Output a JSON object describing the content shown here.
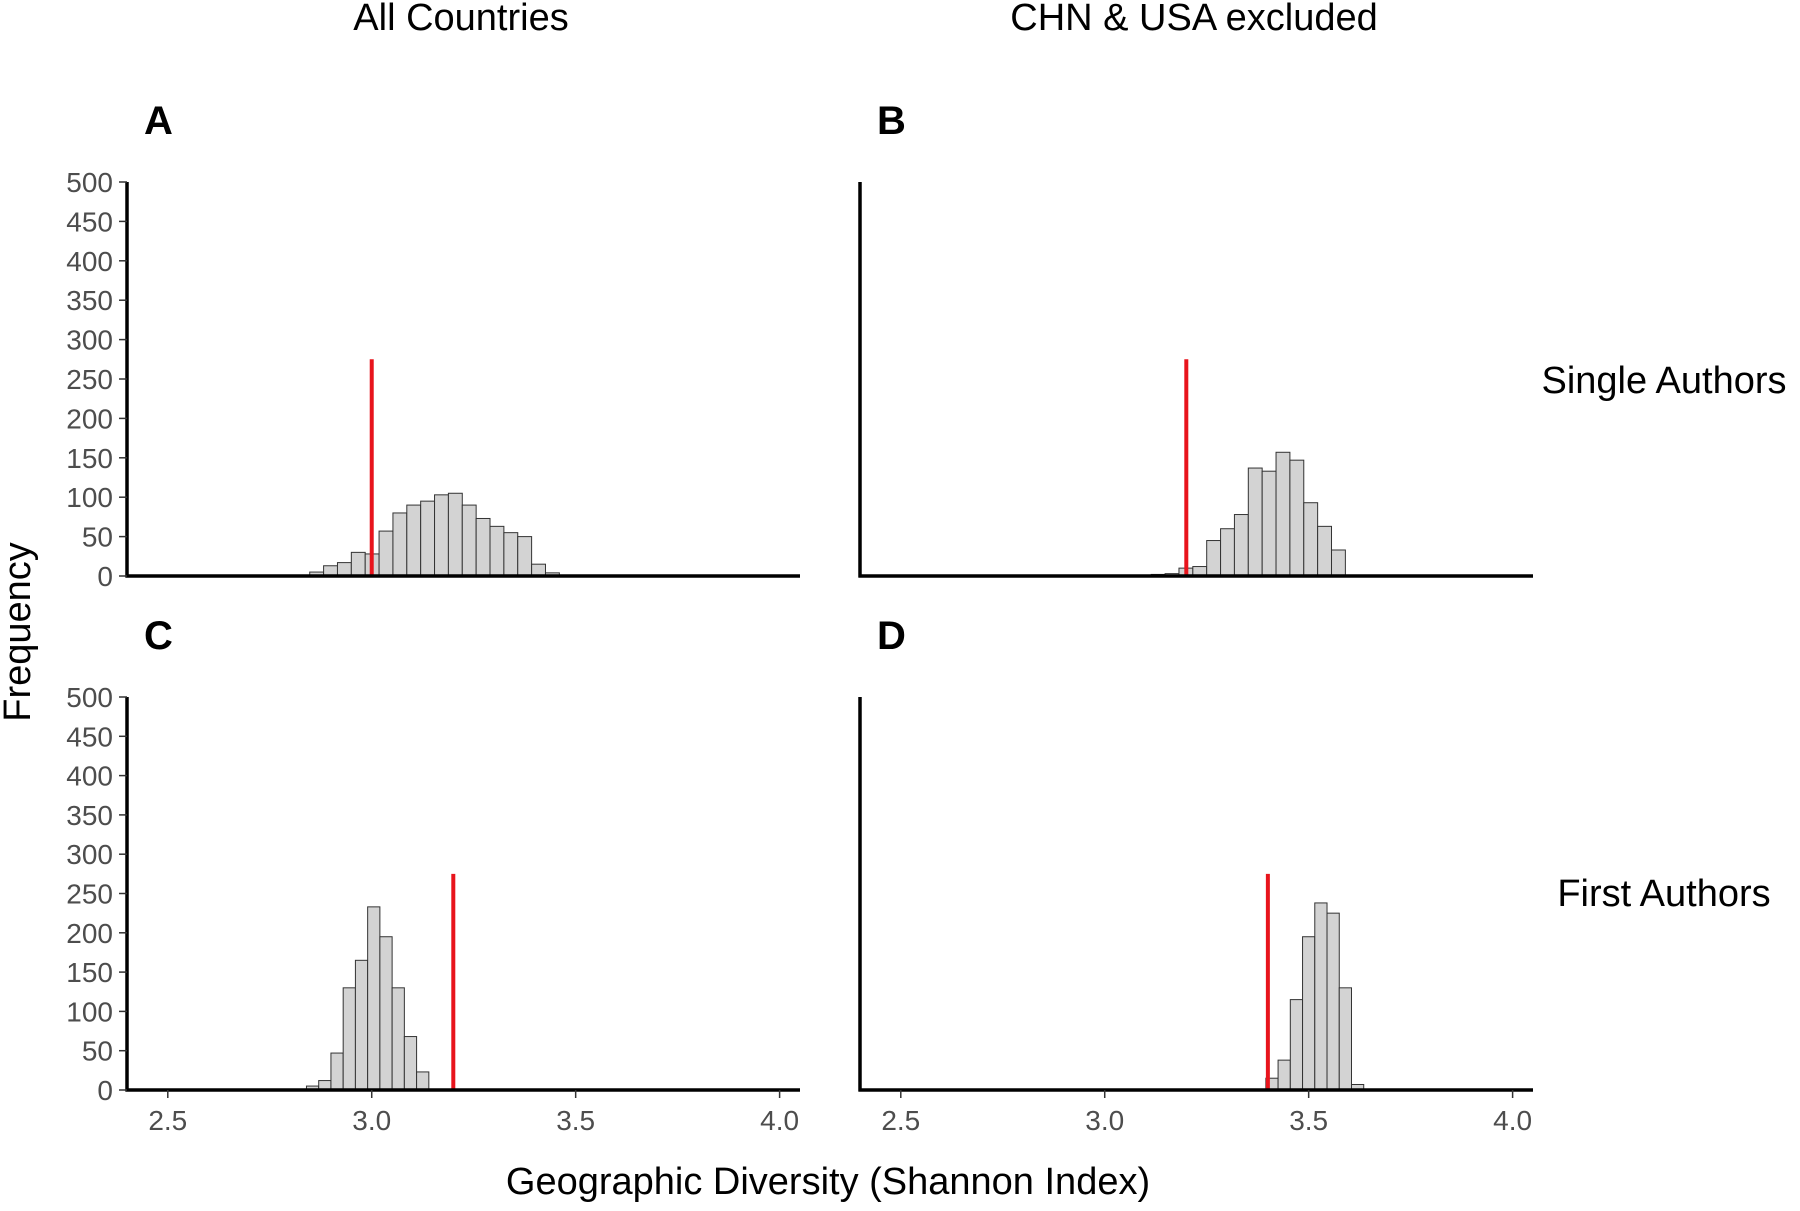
{
  "figure": {
    "col_titles": [
      "All Countries",
      "CHN & USA excluded"
    ],
    "row_titles": [
      "Single Authors",
      "First Authors"
    ],
    "xlabel": "Geographic Diversity (Shannon Index)",
    "ylabel": "Frequency"
  },
  "colors": {
    "bar_fill": "#d3d3d3",
    "bar_stroke": "#333333",
    "reference_line": "#e8141c"
  },
  "chart_data": [
    {
      "type": "bar",
      "panel": "A",
      "column": "All Countries",
      "row": "Single Authors",
      "xlim": [
        2.4,
        4.05
      ],
      "ylim": [
        0,
        500
      ],
      "xticks": [
        "2.5",
        "3.0",
        "3.5",
        "4.0"
      ],
      "yticks": [
        "0",
        "50",
        "100",
        "150",
        "200",
        "250",
        "300",
        "350",
        "400",
        "450",
        "500"
      ],
      "bin_width": 0.034,
      "bins": [
        2.848,
        2.882,
        2.916,
        2.95,
        2.984,
        3.018,
        3.052,
        3.086,
        3.12,
        3.154,
        3.188,
        3.222,
        3.256,
        3.29,
        3.324,
        3.358,
        3.392,
        3.426
      ],
      "counts": [
        5,
        13,
        17,
        30,
        28,
        57,
        80,
        90,
        95,
        103,
        105,
        90,
        73,
        63,
        55,
        50,
        15,
        4
      ],
      "reference_line": {
        "x": 3.0,
        "height": 275
      }
    },
    {
      "type": "bar",
      "panel": "B",
      "column": "CHN & USA excluded",
      "row": "Single Authors",
      "xlim": [
        2.4,
        4.05
      ],
      "ylim": [
        0,
        500
      ],
      "xticks": [
        "2.5",
        "3.0",
        "3.5",
        "4.0"
      ],
      "yticks": [],
      "bin_width": 0.034,
      "bins": [
        3.046,
        3.08,
        3.114,
        3.148,
        3.182,
        3.216,
        3.25,
        3.284,
        3.318,
        3.352,
        3.386,
        3.42,
        3.454,
        3.488,
        3.522,
        3.556
      ],
      "counts": [
        1,
        1,
        2,
        3,
        10,
        12,
        45,
        60,
        78,
        137,
        133,
        157,
        147,
        93,
        63,
        33
      ],
      "reference_line": {
        "x": 3.2,
        "height": 275
      }
    },
    {
      "type": "bar",
      "panel": "C",
      "column": "All Countries",
      "row": "First Authors",
      "xlim": [
        2.4,
        4.05
      ],
      "ylim": [
        0,
        500
      ],
      "xticks": [
        "2.5",
        "3.0",
        "3.5",
        "4.0"
      ],
      "yticks": [
        "0",
        "50",
        "100",
        "150",
        "200",
        "250",
        "300",
        "350",
        "400",
        "450",
        "500"
      ],
      "bin_width": 0.03,
      "bins": [
        2.84,
        2.87,
        2.9,
        2.93,
        2.96,
        2.99,
        3.02,
        3.05,
        3.08,
        3.11
      ],
      "counts": [
        5,
        12,
        47,
        130,
        165,
        233,
        195,
        130,
        68,
        23
      ],
      "reference_line": {
        "x": 3.2,
        "height": 275
      }
    },
    {
      "type": "bar",
      "panel": "D",
      "column": "CHN & USA excluded",
      "row": "First Authors",
      "xlim": [
        2.4,
        4.05
      ],
      "ylim": [
        0,
        500
      ],
      "xticks": [
        "2.5",
        "3.0",
        "3.5",
        "4.0"
      ],
      "yticks": [],
      "bin_width": 0.03,
      "bins": [
        3.395,
        3.425,
        3.455,
        3.485,
        3.515,
        3.545,
        3.575,
        3.605
      ],
      "counts": [
        15,
        38,
        115,
        195,
        238,
        225,
        130,
        7
      ],
      "reference_line": {
        "x": 3.4,
        "height": 275
      }
    }
  ]
}
